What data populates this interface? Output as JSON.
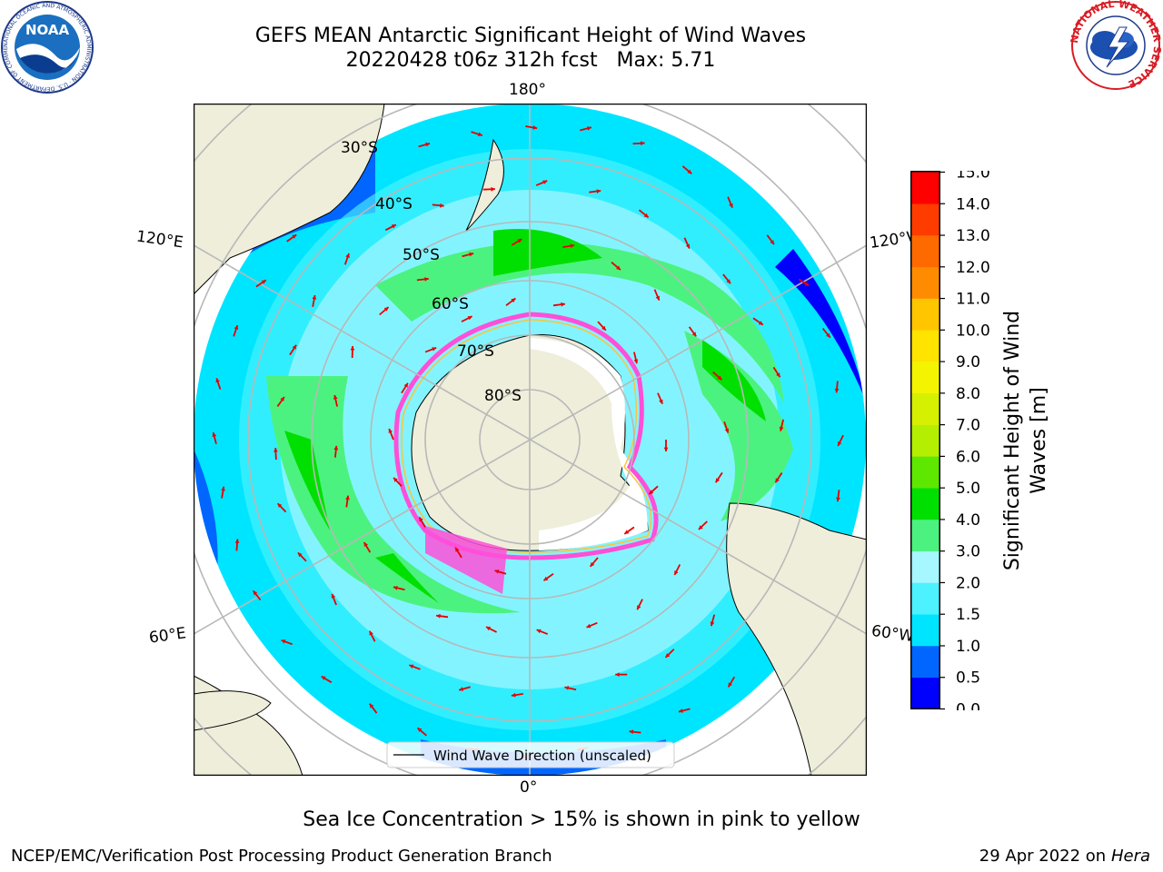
{
  "title": {
    "line1": "GEFS MEAN Antarctic Significant Height of Wind Waves",
    "line2": "20220428 t06z 312h fcst   Max: 5.71"
  },
  "logos": {
    "noaa": {
      "text": "NOAA",
      "ring_text": "NATIONAL OCEANIC AND ATMOSPHERIC ADMINISTRATION · U.S. DEPARTMENT OF COMMERCE"
    },
    "nws": {
      "ring_text": "NATIONAL WEATHER SERVICE"
    }
  },
  "map": {
    "projection": "south-polar-stereographic",
    "longitude_labels": {
      "top": "180°",
      "bottom": "0°",
      "upper_left": "120°E",
      "lower_left": "60°E",
      "upper_right": "120°W",
      "lower_right": "60°W"
    },
    "latitude_labels": [
      "30°S",
      "40°S",
      "50°S",
      "60°S",
      "70°S",
      "80°S"
    ],
    "legend": {
      "label": "Wind Wave Direction (unscaled)"
    },
    "colors": {
      "land": "#efeedb",
      "ice": "#ff4fd8",
      "ice_edge": "#ffc23c",
      "arrow": "#e80000",
      "grid": "#b8b8b8"
    }
  },
  "colorbar": {
    "label": "Significant Height of Wind Waves [m]",
    "ticks": [
      "0.0",
      "0.5",
      "1.0",
      "1.5",
      "2.0",
      "3.0",
      "4.0",
      "5.0",
      "6.0",
      "7.0",
      "8.0",
      "9.0",
      "10.0",
      "11.0",
      "12.0",
      "13.0",
      "14.0",
      "15.0"
    ],
    "colors": [
      "#0000ff",
      "#0066ff",
      "#00e5ff",
      "#4cf2ff",
      "#a6f7ff",
      "#4cf27f",
      "#00e000",
      "#5ee800",
      "#b4ee00",
      "#d5f000",
      "#f4f400",
      "#ffe400",
      "#ffc600",
      "#ff8c00",
      "#ff6a00",
      "#ff3c00",
      "#ff0000"
    ]
  },
  "chart_data": {
    "type": "heatmap",
    "title": "GEFS MEAN Antarctic Significant Height of Wind Waves",
    "subtitle": "20220428 t06z 312h fcst   Max: 5.71",
    "max_value": 5.71,
    "units": "m",
    "colorbar_label": "Significant Height of Wind Waves [m]",
    "colorbar_range": [
      0,
      15
    ],
    "legend": "Wind Wave Direction (unscaled)"
  },
  "footnote": "Sea Ice Concentration > 15% is shown in pink to yellow",
  "credit": "NCEP/EMC/Verification Post Processing Product Generation Branch",
  "date_stamp": {
    "date": "29 Apr 2022 on",
    "machine": "Hera"
  }
}
